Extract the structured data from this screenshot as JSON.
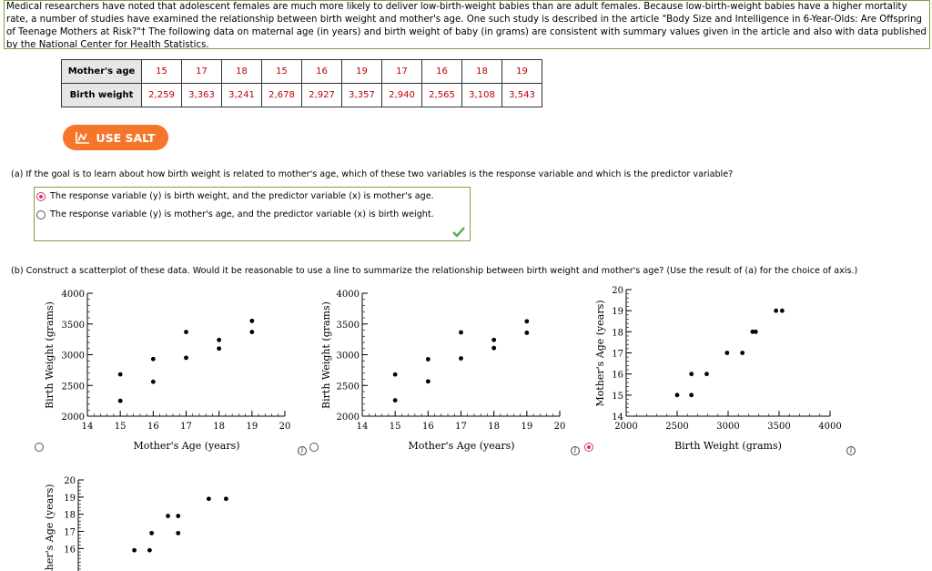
{
  "intro": {
    "text": "Medical researchers have noted that adolescent females are much more likely to deliver low-birth-weight babies than are adult females. Because low-birth-weight babies have a higher mortality rate, a number of studies have examined the relationship between birth weight and mother's age. One such study is described in the article \"Body Size and Intelligence in 6-Year-Olds: Are Offspring of Teenage Mothers at Risk?\"† The following data on maternal age (in years) and birth weight of baby (in grams) are consistent with summary values given in the article and also with data published by the National Center for Health Statistics."
  },
  "table": {
    "row1_label": "Mother's age",
    "row2_label": "Birth weight",
    "ages": [
      "15",
      "17",
      "18",
      "15",
      "16",
      "19",
      "17",
      "16",
      "18",
      "19"
    ],
    "weights": [
      "2,259",
      "3,363",
      "3,241",
      "2,678",
      "2,927",
      "3,357",
      "2,940",
      "2,565",
      "3,108",
      "3,543"
    ]
  },
  "salt_button": {
    "label": "USE SALT",
    "icon": "chart-icon",
    "color": "#f5762a"
  },
  "part_a": {
    "question": "(a)  If the goal is to learn about how birth weight is related to mother's age, which of these two variables is the response variable and which is the predictor variable?",
    "options": [
      {
        "label": "The response variable (y) is birth weight, and the predictor variable (x) is mother's age.",
        "selected": true
      },
      {
        "label": "The response variable (y) is mother's age, and the predictor variable (x) is birth weight.",
        "selected": false
      }
    ],
    "status_icon": "checkmark-icon"
  },
  "part_b": {
    "question": "(b)  Construct a scatterplot of these data. Would it be reasonable to use a line to summarize the relationship between birth weight and mother's age? (Use the result of (a) for the choice of axis.)"
  },
  "chart_data": [
    {
      "type": "scatter",
      "xlabel": "Mother's Age (years)",
      "ylabel": "Birth Weight (grams)",
      "xlim": [
        14,
        20
      ],
      "ylim": [
        2000,
        4000
      ],
      "xticks": [
        "14",
        "15",
        "16",
        "17",
        "18",
        "19",
        "20"
      ],
      "yticks": [
        "2000",
        "2500",
        "3000",
        "3500",
        "4000"
      ],
      "points": [
        [
          15,
          2250
        ],
        [
          15,
          2680
        ],
        [
          16,
          2560
        ],
        [
          16,
          2930
        ],
        [
          17,
          2950
        ],
        [
          17,
          3370
        ],
        [
          18,
          3100
        ],
        [
          18,
          3240
        ],
        [
          19,
          3370
        ],
        [
          19,
          3550
        ]
      ],
      "selected": false
    },
    {
      "type": "scatter",
      "xlabel": "Mother's Age (years)",
      "ylabel": "Birth Weight (grams)",
      "xlim": [
        14,
        20
      ],
      "ylim": [
        2000,
        4000
      ],
      "xticks": [
        "14",
        "15",
        "16",
        "17",
        "18",
        "19",
        "20"
      ],
      "yticks": [
        "2000",
        "2500",
        "3000",
        "3500",
        "4000"
      ],
      "points": [
        [
          15,
          2259
        ],
        [
          17,
          3363
        ],
        [
          18,
          3241
        ],
        [
          15,
          2678
        ],
        [
          16,
          2927
        ],
        [
          19,
          3357
        ],
        [
          17,
          2940
        ],
        [
          16,
          2565
        ],
        [
          18,
          3108
        ],
        [
          19,
          3543
        ]
      ],
      "selected": false
    },
    {
      "type": "scatter",
      "xlabel": "Birth Weight (grams)",
      "ylabel": "Mother's Age (years)",
      "xlim": [
        2000,
        4000
      ],
      "ylim": [
        14,
        20
      ],
      "xticks": [
        "2000",
        "2500",
        "3000",
        "3500",
        "4000"
      ],
      "yticks": [
        "14",
        "15",
        "16",
        "17",
        "18",
        "19",
        "20"
      ],
      "points": [
        [
          2500,
          15
        ],
        [
          2640,
          15
        ],
        [
          2640,
          16
        ],
        [
          2790,
          16
        ],
        [
          2990,
          17
        ],
        [
          3140,
          17
        ],
        [
          3240,
          18
        ],
        [
          3270,
          18
        ],
        [
          3470,
          19
        ],
        [
          3530,
          19
        ]
      ],
      "selected": true
    },
    {
      "type": "scatter",
      "xlabel": "",
      "ylabel": "Mother's Age (years)",
      "xlim": [
        2000,
        4000
      ],
      "ylim": [
        14,
        20
      ],
      "xticks": [],
      "yticks": [
        "16",
        "17",
        "18",
        "19",
        "20"
      ],
      "points": [
        [
          2550,
          15.9
        ],
        [
          2700,
          15.9
        ],
        [
          2720,
          16.9
        ],
        [
          2980,
          16.9
        ],
        [
          2880,
          17.9
        ],
        [
          2980,
          17.9
        ],
        [
          3280,
          18.9
        ],
        [
          3450,
          18.9
        ]
      ],
      "selected": false
    }
  ]
}
